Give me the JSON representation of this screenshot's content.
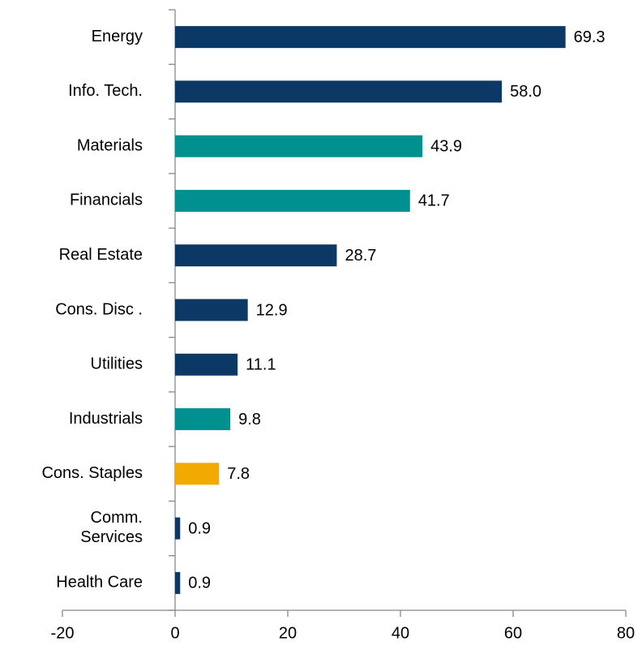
{
  "chart_data": {
    "type": "barh",
    "categories": [
      "Energy",
      "Info. Tech.",
      "Materials",
      "Financials",
      "Real Estate",
      "Cons. Disc .",
      "Utilities",
      "Industrials",
      "Cons. Staples",
      "Comm.\nServices",
      "Health Care"
    ],
    "values": [
      69.3,
      58.0,
      43.9,
      41.7,
      28.7,
      12.9,
      11.1,
      9.8,
      7.8,
      0.9,
      0.9
    ],
    "value_labels": [
      "69.3",
      "58.0",
      "43.9",
      "41.7",
      "28.7",
      "12.9",
      "11.1",
      "9.8",
      "7.8",
      "0.9",
      "0.9"
    ],
    "colors": [
      "#0c3866",
      "#0c3866",
      "#00908f",
      "#00908f",
      "#0c3866",
      "#0c3866",
      "#0c3866",
      "#00908f",
      "#f2a900",
      "#0c3866",
      "#0c3866"
    ],
    "xlim": [
      -20,
      80
    ],
    "xticks": [
      -20,
      0,
      20,
      40,
      60,
      80
    ]
  }
}
